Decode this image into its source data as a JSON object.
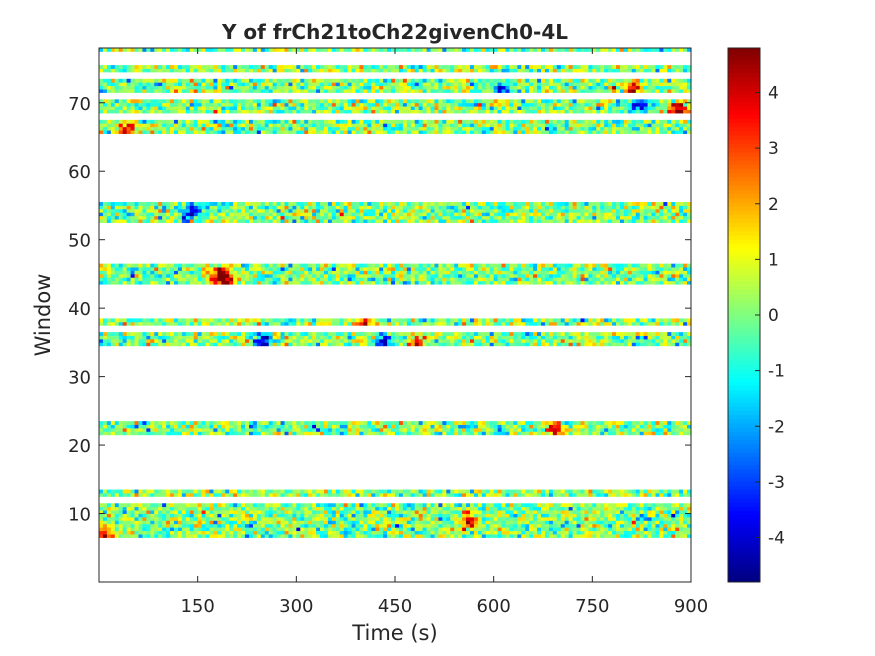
{
  "chart_data": {
    "type": "heatmap",
    "title": "Y of frCh21toCh22givenCh0-4L",
    "xlabel": "Time (s)",
    "ylabel": "Window",
    "xlim": [
      0,
      900
    ],
    "ylim": [
      0,
      78
    ],
    "xticks": [
      150,
      300,
      450,
      600,
      750,
      900
    ],
    "yticks": [
      10,
      20,
      30,
      40,
      50,
      60,
      70
    ],
    "colormap": "jet",
    "clim": [
      -4.8,
      4.8
    ],
    "colorbar_ticks": [
      4,
      3,
      2,
      1,
      0,
      -1,
      -2,
      -3,
      -4
    ],
    "grid": false,
    "window_bands": [
      {
        "y_start": 6.5,
        "y_end": 11.5
      },
      {
        "y_start": 12.5,
        "y_end": 13.5
      },
      {
        "y_start": 21.5,
        "y_end": 23.5
      },
      {
        "y_start": 34.5,
        "y_end": 36.5
      },
      {
        "y_start": 37.5,
        "y_end": 38.5
      },
      {
        "y_start": 43.5,
        "y_end": 46.5
      },
      {
        "y_start": 52.5,
        "y_end": 55.5
      },
      {
        "y_start": 65.5,
        "y_end": 67.5
      },
      {
        "y_start": 68.5,
        "y_end": 70.5
      },
      {
        "y_start": 71.5,
        "y_end": 73.5
      },
      {
        "y_start": 74.5,
        "y_end": 75.5
      },
      {
        "y_start": 77.5,
        "y_end": 78.0
      }
    ],
    "hotspots": [
      {
        "t": 180,
        "w": 45,
        "value": 4.6
      },
      {
        "t": 190,
        "w": 44,
        "value": 4.2
      },
      {
        "t": 560,
        "w": 9,
        "value": 4.5
      },
      {
        "t": 690,
        "w": 22,
        "value": 4.0
      },
      {
        "t": 880,
        "w": 69,
        "value": 4.7
      },
      {
        "t": 810,
        "w": 72,
        "value": 4.0
      },
      {
        "t": 40,
        "w": 66,
        "value": 3.8
      },
      {
        "t": 480,
        "w": 35,
        "value": 3.5
      },
      {
        "t": 400,
        "w": 38,
        "value": 3.0
      },
      {
        "t": 245,
        "w": 35,
        "value": -4.2
      },
      {
        "t": 430,
        "w": 35,
        "value": -4.0
      },
      {
        "t": 140,
        "w": 54,
        "value": -4.0
      },
      {
        "t": 820,
        "w": 70,
        "value": -3.8
      },
      {
        "t": 5,
        "w": 7,
        "value": 4.0
      },
      {
        "t": 610,
        "w": 72,
        "value": -3.5
      }
    ]
  }
}
